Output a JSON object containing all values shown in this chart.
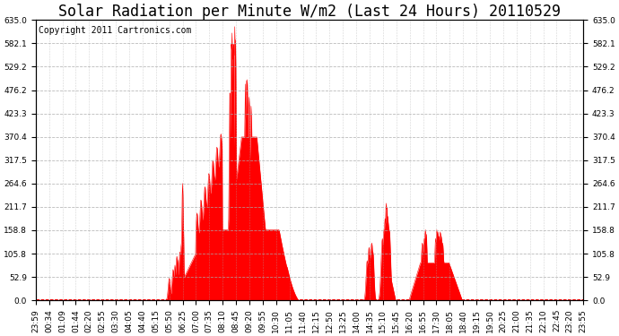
{
  "title": "Solar Radiation per Minute W/m2 (Last 24 Hours) 20110529",
  "copyright_text": "Copyright 2011 Cartronics.com",
  "fill_color": "#ff0000",
  "line_color": "#ff0000",
  "background_color": "#ffffff",
  "plot_bg_color": "#ffffff",
  "dashed_line_color": "#ff0000",
  "ymin": 0.0,
  "ymax": 635.0,
  "yticks": [
    0.0,
    52.9,
    105.8,
    158.8,
    211.7,
    264.6,
    317.5,
    370.4,
    423.3,
    476.2,
    529.2,
    582.1,
    635.0
  ],
  "xtick_labels": [
    "23:59",
    "00:34",
    "01:09",
    "01:44",
    "02:20",
    "02:55",
    "03:30",
    "04:05",
    "04:40",
    "05:15",
    "05:50",
    "06:25",
    "07:00",
    "07:35",
    "08:10",
    "08:45",
    "09:20",
    "09:55",
    "10:30",
    "11:05",
    "11:40",
    "12:15",
    "12:50",
    "13:25",
    "14:00",
    "14:35",
    "15:10",
    "15:45",
    "16:20",
    "16:55",
    "17:30",
    "18:05",
    "18:40",
    "19:15",
    "19:50",
    "20:25",
    "21:00",
    "21:35",
    "22:10",
    "22:45",
    "23:20",
    "23:55"
  ],
  "title_fontsize": 12,
  "tick_fontsize": 6.5,
  "copyright_fontsize": 7
}
